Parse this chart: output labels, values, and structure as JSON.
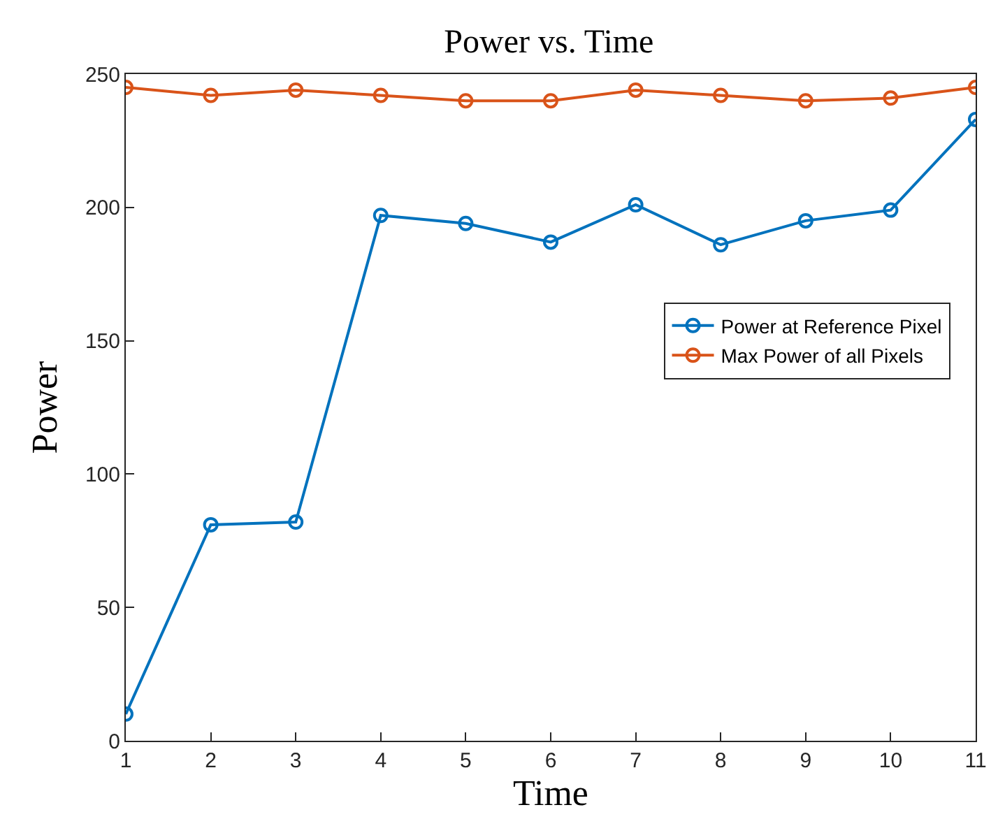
{
  "chart_data": {
    "type": "line",
    "title": "Power vs. Time",
    "xlabel": "Time",
    "ylabel": "Power",
    "x": [
      1,
      2,
      3,
      4,
      5,
      6,
      7,
      8,
      9,
      10,
      11
    ],
    "series": [
      {
        "name": "Power at Reference Pixel",
        "color": "#0072bd",
        "values": [
          10,
          81,
          82,
          197,
          194,
          187,
          201,
          186,
          195,
          199,
          233
        ]
      },
      {
        "name": "Max Power of all Pixels",
        "color": "#d95319",
        "values": [
          245,
          242,
          244,
          242,
          240,
          240,
          244,
          242,
          240,
          241,
          245
        ]
      }
    ],
    "xlim": [
      1,
      11
    ],
    "xticks": [
      1,
      2,
      3,
      4,
      5,
      6,
      7,
      8,
      9,
      10,
      11
    ],
    "ylim": [
      0,
      250
    ],
    "yticks": [
      0,
      50,
      100,
      150,
      200,
      250
    ],
    "grid": false,
    "legend": "right",
    "marker": "circle",
    "line_style": "solid"
  }
}
